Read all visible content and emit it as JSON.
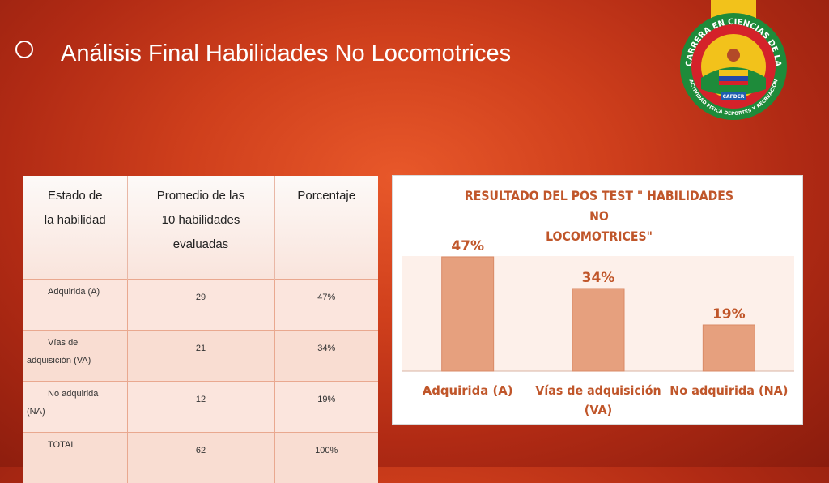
{
  "slide": {
    "title": "Análisis Final Habilidades No Locomotrices"
  },
  "logo": {
    "top_text": "CARRERA EN CIENCIAS DE LA",
    "bottom_text": "ACTIVIDAD FISICA DEPORTES Y RECREACION",
    "badge": "CAFDER",
    "colors": {
      "outer": "#1e8b3a",
      "ring": "#d4222a",
      "inner": "#f2c21b",
      "ribbon": "#f2c21b"
    }
  },
  "table": {
    "headers": [
      {
        "line1": "Estado de",
        "line2": "la habilidad"
      },
      {
        "line1": "Promedio de las",
        "line2": "10 habilidades",
        "line3": "evaluadas"
      },
      {
        "line1": "Porcentaje"
      }
    ],
    "rows": [
      {
        "label_a": "Adquirida (A)",
        "label_b": "",
        "promedio": "29",
        "porcentaje": "47%"
      },
      {
        "label_a": "Vías de",
        "label_b": "adquisición (VA)",
        "promedio": "21",
        "porcentaje": "34%"
      },
      {
        "label_a": "No adquirida",
        "label_b": "(NA)",
        "promedio": "12",
        "porcentaje": "19%"
      },
      {
        "label_a": "TOTAL",
        "label_b": "",
        "promedio": "62",
        "porcentaje": "100%"
      }
    ]
  },
  "chart_data": {
    "type": "bar",
    "title": "RESULTADO DEL POS TEST \" HABILIDADES NO LOCOMOTRICES\"",
    "title_line1": "RESULTADO DEL POS TEST \" HABILIDADES NO",
    "title_line2": "LOCOMOTRICES\"",
    "categories": [
      "Adquirida (A)",
      "Vías de adquisición (VA)",
      "No adquirida (NA)"
    ],
    "category_lines": [
      [
        "Adquirida (A)"
      ],
      [
        "Vías de adquisición",
        "(VA)"
      ],
      [
        "No adquirida (NA)"
      ]
    ],
    "values": [
      47,
      34,
      19
    ],
    "data_labels": [
      "47%",
      "34%",
      "19%"
    ],
    "ylim": [
      0,
      55
    ],
    "grid": false,
    "legend": "none",
    "colors": {
      "bar": "#e6a07e",
      "bar_border": "#d98a66",
      "label": "#c0562a",
      "plot_bg": "#fdf0ea"
    }
  }
}
